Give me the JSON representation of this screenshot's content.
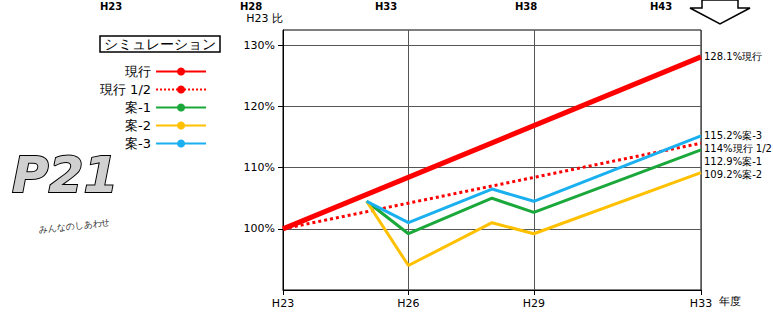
{
  "chart_data": {
    "type": "line",
    "title": "シミュレーション",
    "y_label": "H23 比",
    "x_label": "年度",
    "xlim": [
      23,
      33
    ],
    "xticks": [
      {
        "value": 23,
        "label": "H23"
      },
      {
        "value": 26,
        "label": "H26"
      },
      {
        "value": 29,
        "label": "H29"
      },
      {
        "value": 33,
        "label": "H33"
      }
    ],
    "ylim": [
      90,
      132.5
    ],
    "yticks": [
      {
        "value": 100,
        "label": "100%"
      },
      {
        "value": 110,
        "label": "110%"
      },
      {
        "value": 120,
        "label": "120%"
      },
      {
        "value": 130,
        "label": "130%"
      }
    ],
    "grid": true,
    "legend": "upper left",
    "series": [
      {
        "name": "現行",
        "color": "#ff0000",
        "line_style": "solid",
        "x": [
          23,
          33
        ],
        "values": [
          100,
          128.1
        ],
        "end_label": "128.1%現行"
      },
      {
        "name": "現行 1/2",
        "color": "#ff0000",
        "line_style": "dotted",
        "x": [
          23,
          33
        ],
        "values": [
          100,
          114
        ],
        "end_label": "114%現行 1/2"
      },
      {
        "name": "案-1",
        "color": "#1aa83a",
        "line_style": "solid",
        "x": [
          25,
          26,
          28,
          29,
          33
        ],
        "values": [
          104.5,
          99.2,
          105.0,
          102.7,
          112.9
        ],
        "end_label": "112.9%案-1"
      },
      {
        "name": "案-2",
        "color": "#ffc000",
        "line_style": "solid",
        "x": [
          25,
          26,
          28,
          29,
          33
        ],
        "values": [
          104.5,
          94.0,
          101.0,
          99.2,
          109.2
        ],
        "end_label": "109.2%案-2"
      },
      {
        "name": "案-3",
        "color": "#1ab0f0",
        "line_style": "solid",
        "x": [
          25,
          26,
          28,
          29,
          33
        ],
        "values": [
          104.5,
          101.0,
          106.5,
          104.5,
          115.2
        ],
        "end_label": "115.2%案-3"
      }
    ],
    "annotations": [
      "H23",
      "H28",
      "H33",
      "H38",
      "H43",
      "P21",
      "みんなのしあわせ"
    ]
  }
}
